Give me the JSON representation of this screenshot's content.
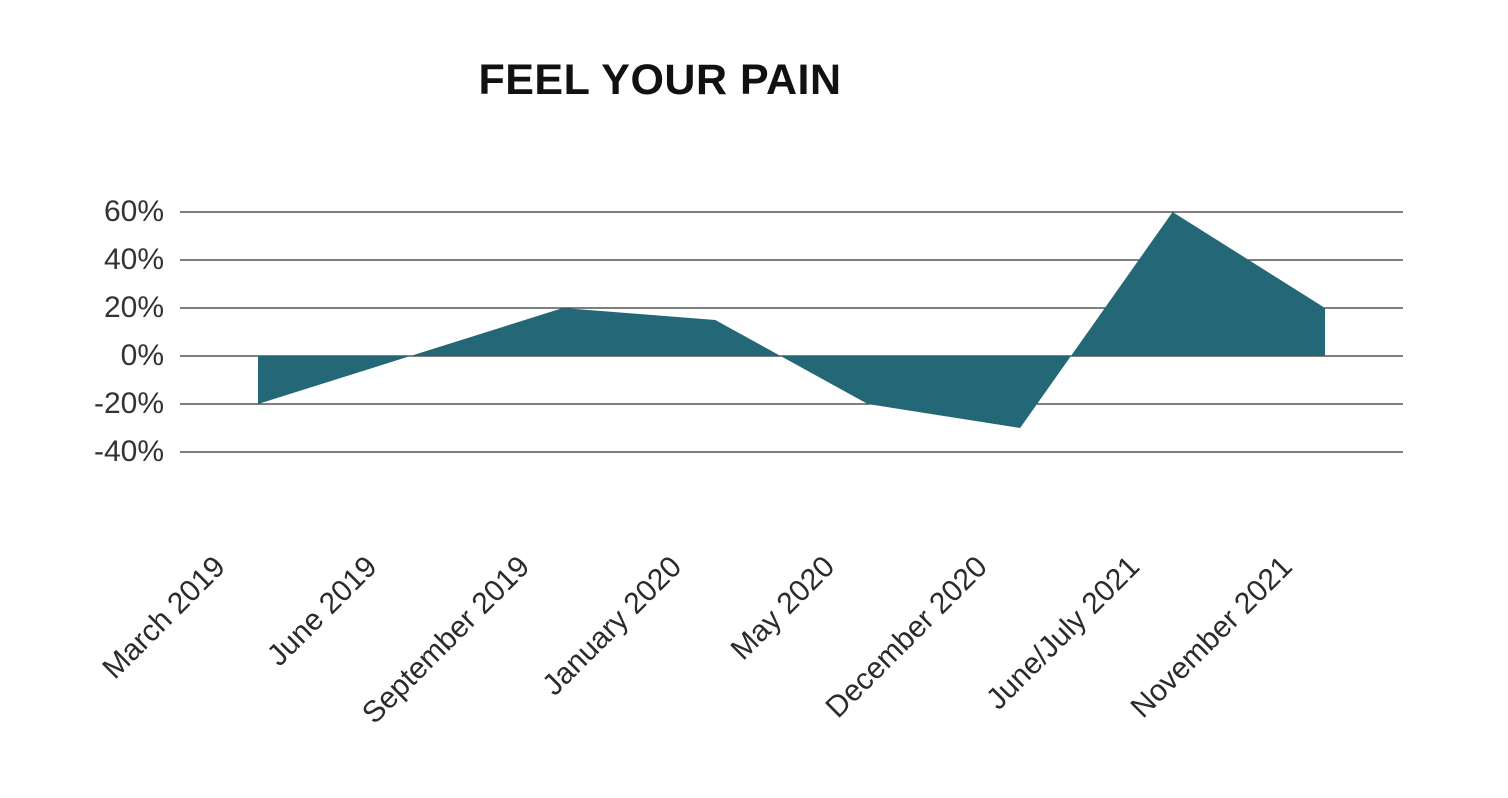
{
  "title": "FEEL YOUR PAIN",
  "chart_data": {
    "type": "area",
    "title": "FEEL YOUR PAIN",
    "categories": [
      "March 2019",
      "June 2019",
      "September 2019",
      "January 2020",
      "May 2020",
      "December 2020",
      "June/July 2021",
      "November 2021"
    ],
    "values": [
      -20,
      0,
      20,
      15,
      -20,
      -30,
      60,
      20
    ],
    "xlabel": "",
    "ylabel": "",
    "ylim": [
      -40,
      60
    ],
    "yticks": [
      60,
      40,
      20,
      0,
      -20,
      -40
    ],
    "ytick_labels": [
      "60%",
      "40%",
      "20%",
      "0%",
      "-20%",
      "-40%"
    ],
    "baseline": 0,
    "grid": true,
    "legend": "none",
    "x_label_rotation_deg": -45
  },
  "colors": {
    "fill": "#246878",
    "gridline": "#333333",
    "axis_text": "#333333",
    "title_text": "#111111",
    "background": "#ffffff"
  }
}
